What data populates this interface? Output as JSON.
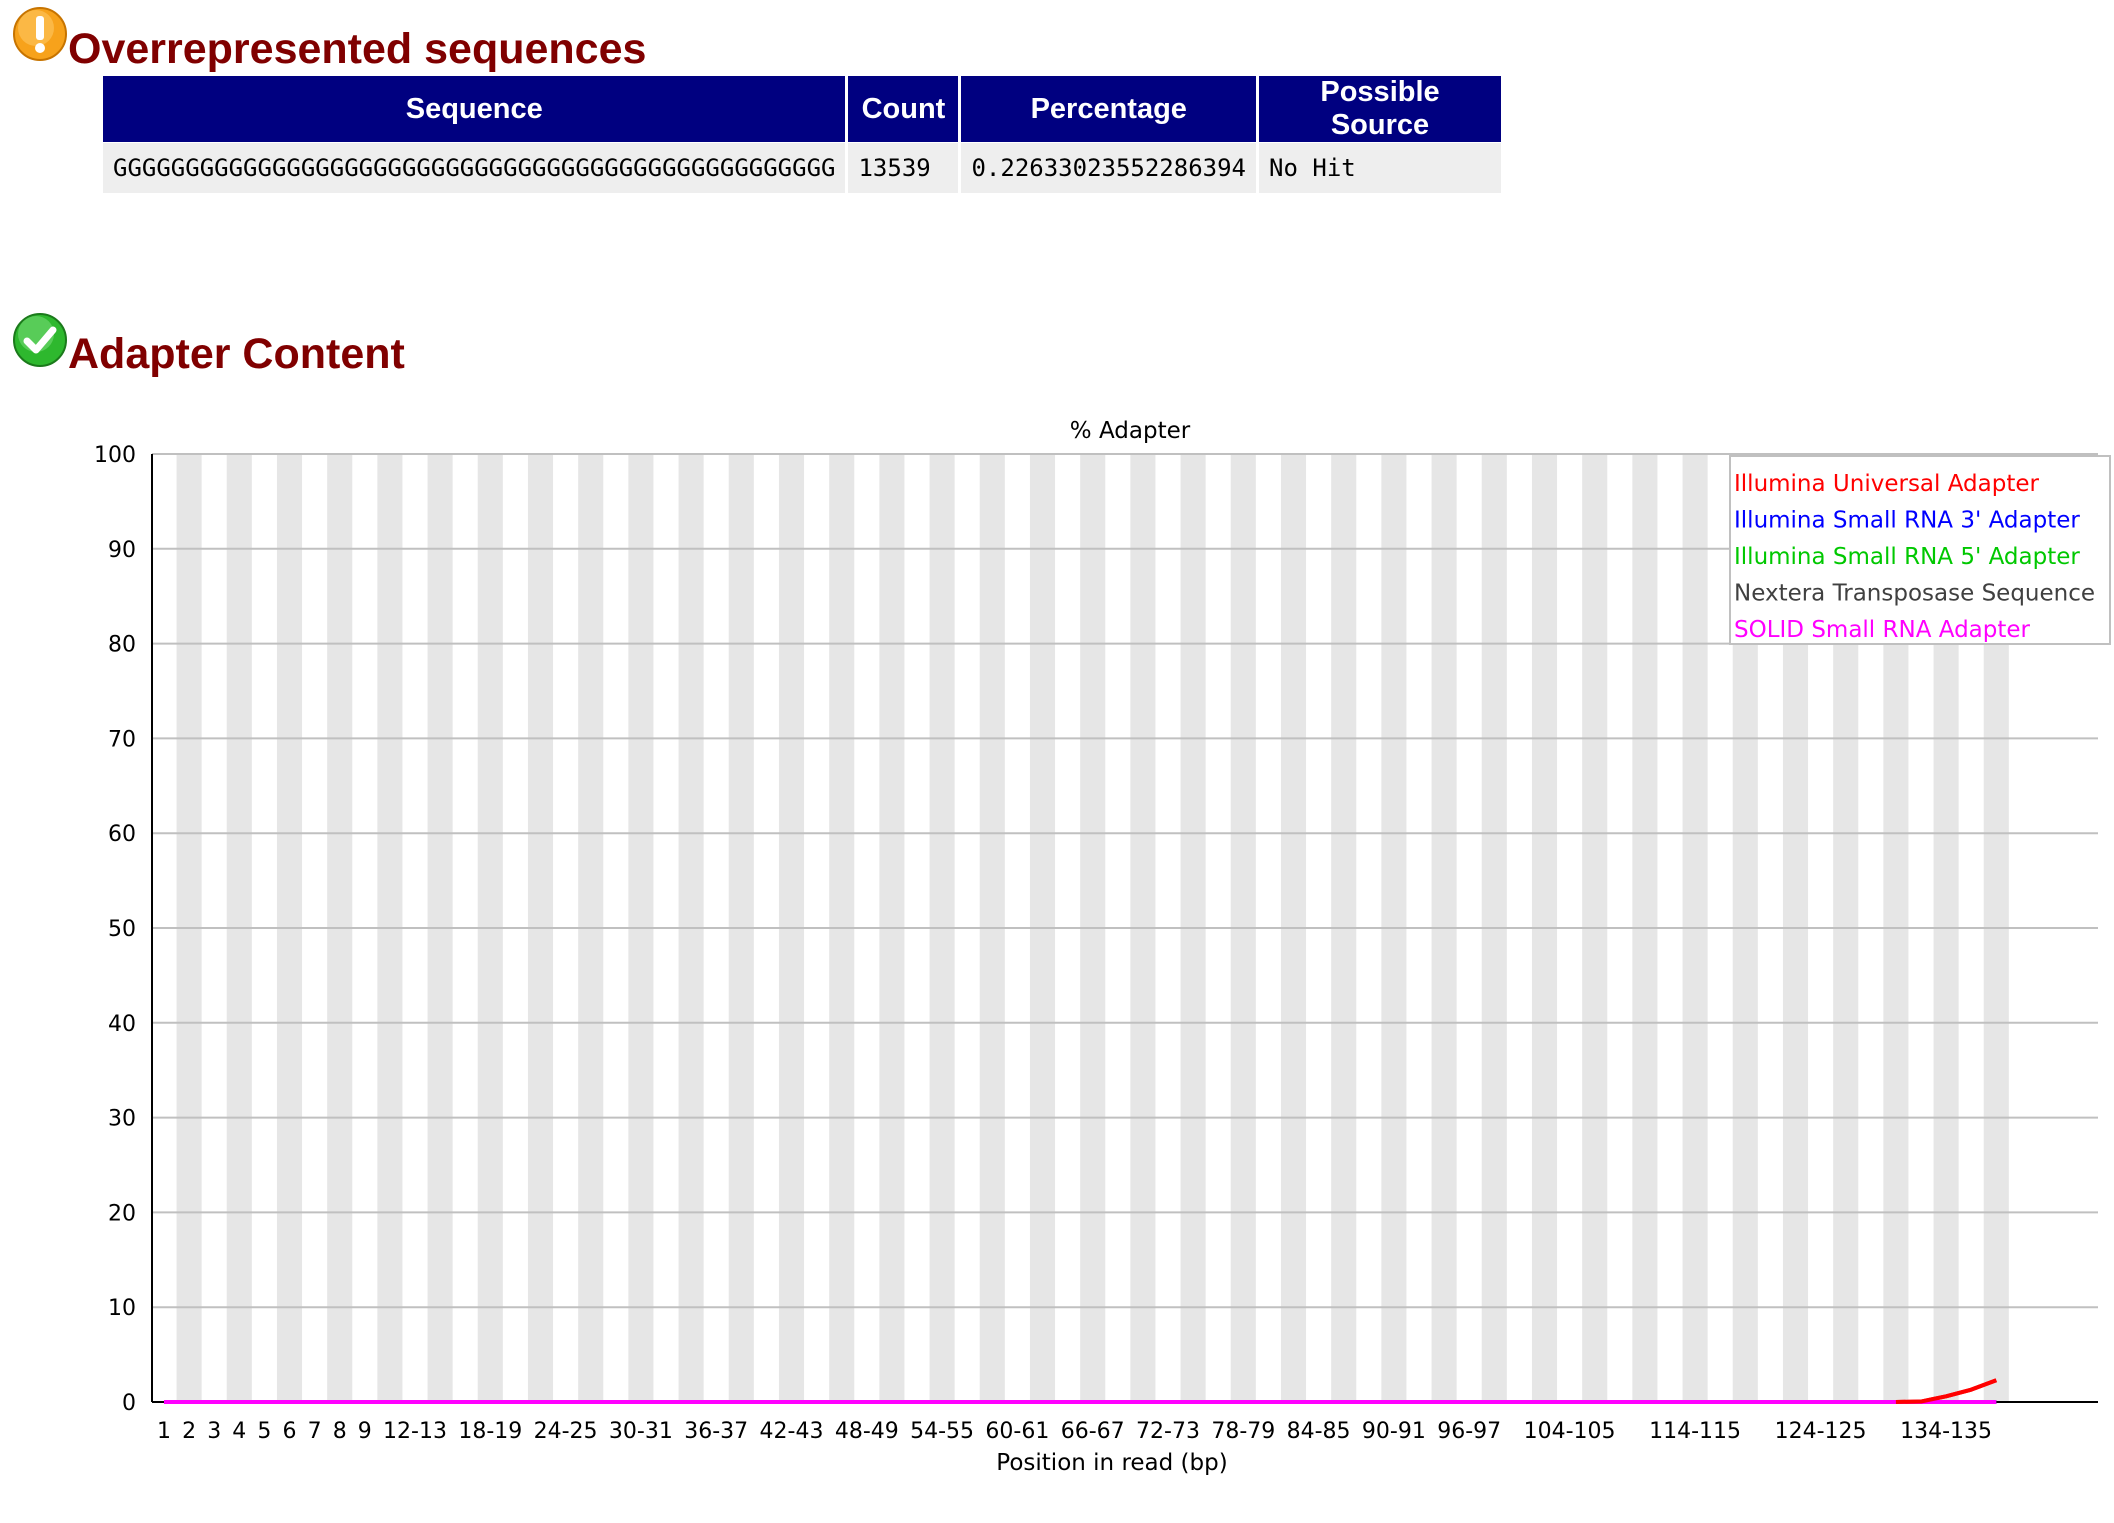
{
  "overrepresented": {
    "title": "Overrepresented sequences",
    "status_icon": "warning-icon",
    "columns": [
      "Sequence",
      "Count",
      "Percentage",
      "Possible Source"
    ],
    "rows": [
      [
        "GGGGGGGGGGGGGGGGGGGGGGGGGGGGGGGGGGGGGGGGGGGGGGGGGG",
        "13539",
        "0.22633023552286394",
        "No Hit"
      ]
    ]
  },
  "adapter": {
    "title": "Adapter Content",
    "status_icon": "pass-check-icon"
  },
  "colors": {
    "heading": "#800000",
    "table_header_bg": "#000080",
    "table_cell_bg": "#eeeeee",
    "warning": "#f7a21b",
    "pass": "#2eb82e"
  },
  "chart_data": {
    "type": "line",
    "title": "% Adapter",
    "xlabel": "Position in read (bp)",
    "ylabel": "",
    "ylim": [
      0,
      100
    ],
    "yticks": [
      0,
      10,
      20,
      30,
      40,
      50,
      60,
      70,
      80,
      90,
      100
    ],
    "grid": true,
    "legend_position": "top-right",
    "categories": [
      "1",
      "2",
      "3",
      "4",
      "5",
      "6",
      "7",
      "8",
      "9",
      "10-11",
      "12-13",
      "14-15",
      "16-17",
      "18-19",
      "20-21",
      "22-23",
      "24-25",
      "26-27",
      "28-29",
      "30-31",
      "32-33",
      "34-35",
      "36-37",
      "38-39",
      "40-41",
      "42-43",
      "44-45",
      "46-47",
      "48-49",
      "50-51",
      "52-53",
      "54-55",
      "56-57",
      "58-59",
      "60-61",
      "62-63",
      "64-65",
      "66-67",
      "68-69",
      "70-71",
      "72-73",
      "74-75",
      "76-77",
      "78-79",
      "80-81",
      "82-83",
      "84-85",
      "86-87",
      "88-89",
      "90-91",
      "92-93",
      "94-95",
      "96-97",
      "98-99",
      "100-101",
      "102-103",
      "104-105",
      "106-107",
      "108-109",
      "110-111",
      "112-113",
      "114-115",
      "116-117",
      "118-119",
      "120-121",
      "122-123",
      "124-125",
      "126-127",
      "128-129",
      "130-131",
      "132-133",
      "134-135",
      "136-137",
      "138-139"
    ],
    "tick_labels_shown": [
      "1",
      "2",
      "3",
      "4",
      "5",
      "6",
      "7",
      "8",
      "9",
      "12-13",
      "18-19",
      "24-25",
      "30-31",
      "36-37",
      "42-43",
      "48-49",
      "54-55",
      "60-61",
      "66-67",
      "72-73",
      "78-79",
      "84-85",
      "90-91",
      "96-97",
      "104-105",
      "114-115",
      "124-125",
      "134-135"
    ],
    "series": [
      {
        "name": "Illumina Universal Adapter",
        "color": "#ff0000",
        "values": [
          0,
          0,
          0,
          0,
          0,
          0,
          0,
          0,
          0,
          0,
          0,
          0,
          0,
          0,
          0,
          0,
          0,
          0,
          0,
          0,
          0,
          0,
          0,
          0,
          0,
          0,
          0,
          0,
          0,
          0,
          0,
          0,
          0,
          0,
          0,
          0,
          0,
          0,
          0,
          0,
          0,
          0,
          0,
          0,
          0,
          0,
          0,
          0,
          0,
          0,
          0,
          0,
          0,
          0,
          0,
          0,
          0,
          0,
          0,
          0,
          0,
          0,
          0,
          0,
          0,
          0,
          0,
          0,
          0,
          0,
          0.05,
          0.6,
          1.3,
          2.3
        ]
      },
      {
        "name": "Illumina Small RNA 3' Adapter",
        "color": "#0000ff",
        "values": [
          0,
          0,
          0,
          0,
          0,
          0,
          0,
          0,
          0,
          0,
          0,
          0,
          0,
          0,
          0,
          0,
          0,
          0,
          0,
          0,
          0,
          0,
          0,
          0,
          0,
          0,
          0,
          0,
          0,
          0,
          0,
          0,
          0,
          0,
          0,
          0,
          0,
          0,
          0,
          0,
          0,
          0,
          0,
          0,
          0,
          0,
          0,
          0,
          0,
          0,
          0,
          0,
          0,
          0,
          0,
          0,
          0,
          0,
          0,
          0,
          0,
          0,
          0,
          0,
          0,
          0,
          0,
          0,
          0,
          0,
          0,
          0,
          0,
          0
        ]
      },
      {
        "name": "Illumina Small RNA 5' Adapter",
        "color": "#00c800",
        "values": [
          0,
          0,
          0,
          0,
          0,
          0,
          0,
          0,
          0,
          0,
          0,
          0,
          0,
          0,
          0,
          0,
          0,
          0,
          0,
          0,
          0,
          0,
          0,
          0,
          0,
          0,
          0,
          0,
          0,
          0,
          0,
          0,
          0,
          0,
          0,
          0,
          0,
          0,
          0,
          0,
          0,
          0,
          0,
          0,
          0,
          0,
          0,
          0,
          0,
          0,
          0,
          0,
          0,
          0,
          0,
          0,
          0,
          0,
          0,
          0,
          0,
          0,
          0,
          0,
          0,
          0,
          0,
          0,
          0,
          0,
          0,
          0,
          0,
          0
        ]
      },
      {
        "name": "Nextera Transposase Sequence",
        "color": "#404040",
        "values": [
          0,
          0,
          0,
          0,
          0,
          0,
          0,
          0,
          0,
          0,
          0,
          0,
          0,
          0,
          0,
          0,
          0,
          0,
          0,
          0,
          0,
          0,
          0,
          0,
          0,
          0,
          0,
          0,
          0,
          0,
          0,
          0,
          0,
          0,
          0,
          0,
          0,
          0,
          0,
          0,
          0,
          0,
          0,
          0,
          0,
          0,
          0,
          0,
          0,
          0,
          0,
          0,
          0,
          0,
          0,
          0,
          0,
          0,
          0,
          0,
          0,
          0,
          0,
          0,
          0,
          0,
          0,
          0,
          0,
          0,
          0,
          0,
          0,
          0
        ]
      },
      {
        "name": "SOLID Small RNA Adapter",
        "color": "#ff00ff",
        "values": [
          0,
          0,
          0,
          0,
          0,
          0,
          0,
          0,
          0,
          0,
          0,
          0,
          0,
          0,
          0,
          0,
          0,
          0,
          0,
          0,
          0,
          0,
          0,
          0,
          0,
          0,
          0,
          0,
          0,
          0,
          0,
          0,
          0,
          0,
          0,
          0,
          0,
          0,
          0,
          0,
          0,
          0,
          0,
          0,
          0,
          0,
          0,
          0,
          0,
          0,
          0,
          0,
          0,
          0,
          0,
          0,
          0,
          0,
          0,
          0,
          0,
          0,
          0,
          0,
          0,
          0,
          0,
          0,
          0,
          0,
          0,
          0,
          0,
          0
        ]
      }
    ]
  }
}
